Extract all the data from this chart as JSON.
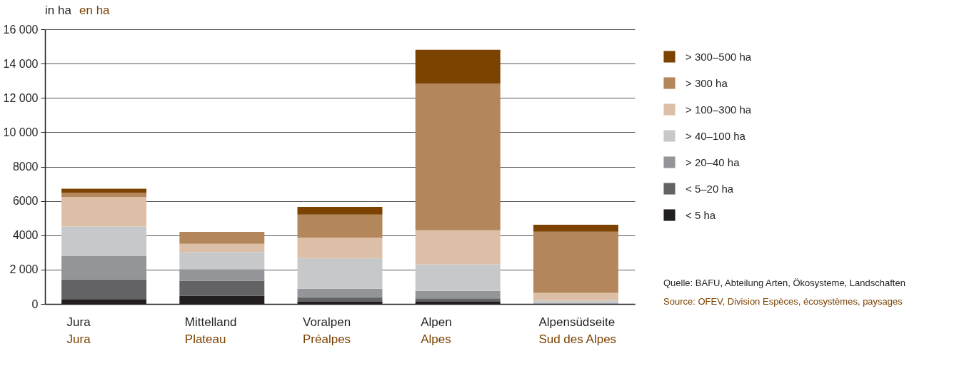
{
  "chart_data": {
    "type": "bar",
    "stacked": true,
    "ylabel": "in ha\nen ha",
    "categories": [
      "Jura\nJura",
      "Mittelland\nPlateau",
      "Voralpen\nPréalpes",
      "Alpen\nAlpes",
      "Alpensüdseite\nSud des Alpes"
    ],
    "series": [
      {
        "name": "< 5 ha",
        "color": "#231f20",
        "values": [
          280,
          480,
          120,
          160,
          0
        ]
      },
      {
        "name": "< 5–20 ha",
        "color": "#636365",
        "values": [
          1150,
          870,
          280,
          160,
          0
        ]
      },
      {
        "name": "> 20–40 ha",
        "color": "#939598",
        "values": [
          1350,
          680,
          480,
          440,
          40
        ]
      },
      {
        "name": "> 40–100 ha",
        "color": "#c7c8ca",
        "values": [
          1730,
          990,
          1790,
          1550,
          160
        ]
      },
      {
        "name": "> 100–300 ha",
        "color": "#dcbfa6",
        "values": [
          1720,
          480,
          1190,
          1980,
          440
        ]
      },
      {
        "name": "> 300 ha",
        "color": "#b3875b",
        "values": [
          240,
          700,
          1350,
          8540,
          3570
        ]
      },
      {
        "name": "> 300–500 ha",
        "color": "#7b4200",
        "values": [
          240,
          0,
          440,
          1980,
          400
        ]
      }
    ],
    "ylim": [
      0,
      16000
    ],
    "yticks": [
      0,
      {
        "value": 2000,
        "label": "2 000"
      },
      4000,
      6000,
      8000,
      {
        "value": 10000,
        "label": "10 000"
      },
      {
        "value": 12000,
        "label": "12 000"
      },
      {
        "value": 14000,
        "label": "14 000"
      },
      {
        "value": 16000,
        "label": "16 000"
      }
    ],
    "grid": "y",
    "legend": "right",
    "annotations": [
      "Quelle: BAFU, Abteilung Arten, Ökosysteme, Landschaften",
      "Source: OFEV, Division Espèces, écosystèmes, paysages"
    ]
  }
}
